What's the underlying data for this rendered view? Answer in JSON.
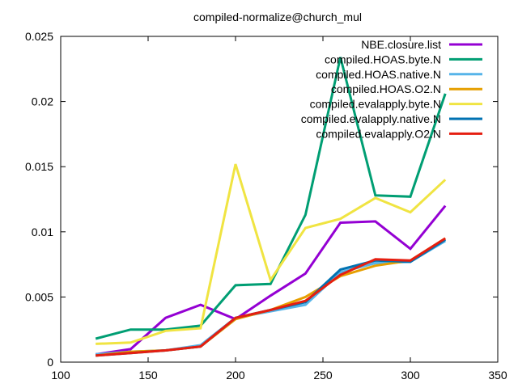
{
  "chart_data": {
    "type": "line",
    "title": "compiled-normalize@church_mul",
    "xlabel": "",
    "ylabel": "",
    "xlim": [
      100,
      350
    ],
    "ylim": [
      0,
      0.025
    ],
    "x_ticks": [
      100,
      150,
      200,
      250,
      300,
      350
    ],
    "x_tick_labels": [
      "100",
      "150",
      "200",
      "250",
      "300",
      "350"
    ],
    "y_ticks": [
      0,
      0.005,
      0.01,
      0.015,
      0.02,
      0.025
    ],
    "y_tick_labels": [
      "0",
      "0.005",
      "0.01",
      "0.015",
      "0.02",
      "0.025"
    ],
    "grid": false,
    "legend_position": "top-right",
    "x": [
      120,
      140,
      160,
      180,
      200,
      220,
      240,
      260,
      280,
      300,
      320
    ],
    "series": [
      {
        "name": "NBE.closure.list",
        "color": "#9400d3",
        "values": [
          0.0006,
          0.001,
          0.0034,
          0.0044,
          0.0033,
          0.0051,
          0.0068,
          0.0107,
          0.0108,
          0.0087,
          0.012
        ]
      },
      {
        "name": "compiled.HOAS.byte.N",
        "color": "#009e73",
        "values": [
          0.0018,
          0.0025,
          0.0025,
          0.0028,
          0.0059,
          0.006,
          0.0113,
          0.0234,
          0.0128,
          0.0127,
          0.0206
        ]
      },
      {
        "name": "compiled.HOAS.native.N",
        "color": "#56b4e9",
        "values": [
          0.0006,
          0.0008,
          0.0009,
          0.0013,
          0.0034,
          0.0039,
          0.0044,
          0.0069,
          0.0076,
          0.0077,
          0.0093
        ]
      },
      {
        "name": "compiled.HOAS.O2.N",
        "color": "#e69f00",
        "values": [
          0.0005,
          0.0008,
          0.0009,
          0.0012,
          0.0033,
          0.004,
          0.005,
          0.0066,
          0.0074,
          0.0078,
          0.0095
        ]
      },
      {
        "name": "compiled.evalapply.byte.N",
        "color": "#f0e442",
        "values": [
          0.0014,
          0.0015,
          0.0024,
          0.0026,
          0.0152,
          0.0063,
          0.0103,
          0.011,
          0.0126,
          0.0115,
          0.014
        ]
      },
      {
        "name": "compiled.evalapply.native.N",
        "color": "#0072b2",
        "values": [
          0.0005,
          0.0007,
          0.0009,
          0.0012,
          0.0034,
          0.004,
          0.0046,
          0.0071,
          0.0078,
          0.0077,
          0.0094
        ]
      },
      {
        "name": "compiled.evalapply.O2.N",
        "color": "#e51e10",
        "values": [
          0.0005,
          0.0007,
          0.0009,
          0.0012,
          0.0034,
          0.004,
          0.0047,
          0.0067,
          0.0079,
          0.0078,
          0.0095
        ]
      }
    ]
  }
}
